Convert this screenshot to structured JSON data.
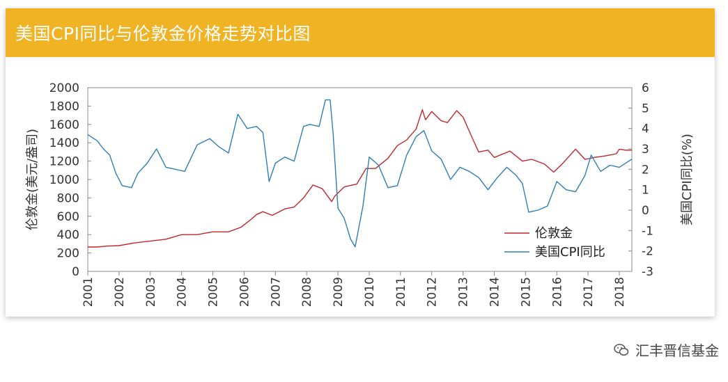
{
  "colors": {
    "header_bg": "#f0b323",
    "gold": "#c0262d",
    "cpi": "#2e7eb8",
    "axis": "#888888"
  },
  "watermark": {
    "text": "汇丰晋信基金",
    "icon": "wechat-icon"
  },
  "chart_data": {
    "type": "line",
    "title": "美国CPI同比与伦敦金价格走势对比图",
    "xlabel": "",
    "ylabel": "伦敦金(美元/盎司)",
    "y2label": "美国CPI同比(%)",
    "x_ticks": [
      "2001",
      "2002",
      "2003",
      "2004",
      "2005",
      "2006",
      "2007",
      "2008",
      "2009",
      "2010",
      "2011",
      "2012",
      "2013",
      "2014",
      "2015",
      "2016",
      "2017",
      "2018"
    ],
    "xlim": [
      2001,
      2018.4
    ],
    "ylim": [
      0,
      2000
    ],
    "y_ticks": [
      0,
      200,
      400,
      600,
      800,
      1000,
      1200,
      1400,
      1600,
      1800,
      2000
    ],
    "y2lim": [
      -3,
      6
    ],
    "y2_ticks": [
      -3,
      -2,
      -1,
      0,
      1,
      2,
      3,
      4,
      5,
      6
    ],
    "legend_position": "lower-right",
    "series": [
      {
        "name": "伦敦金",
        "axis": "left",
        "x": [
          2001.0,
          2001.3,
          2001.6,
          2002.0,
          2002.5,
          2003.0,
          2003.5,
          2004.0,
          2004.5,
          2005.0,
          2005.5,
          2005.9,
          2006.2,
          2006.4,
          2006.6,
          2006.9,
          2007.3,
          2007.6,
          2007.9,
          2008.2,
          2008.5,
          2008.8,
          2008.9,
          2009.2,
          2009.6,
          2009.9,
          2010.2,
          2010.6,
          2010.9,
          2011.2,
          2011.5,
          2011.7,
          2011.8,
          2012.0,
          2012.3,
          2012.5,
          2012.8,
          2013.0,
          2013.3,
          2013.5,
          2013.8,
          2014.0,
          2014.5,
          2014.9,
          2015.2,
          2015.6,
          2015.9,
          2016.2,
          2016.6,
          2016.9,
          2017.2,
          2017.6,
          2017.9,
          2018.0,
          2018.2,
          2018.4
        ],
        "values": [
          265,
          265,
          275,
          280,
          310,
          330,
          350,
          400,
          400,
          430,
          430,
          480,
          560,
          620,
          650,
          610,
          680,
          700,
          800,
          940,
          900,
          760,
          820,
          920,
          950,
          1120,
          1120,
          1230,
          1370,
          1430,
          1550,
          1760,
          1650,
          1740,
          1640,
          1620,
          1750,
          1680,
          1450,
          1300,
          1320,
          1240,
          1310,
          1200,
          1220,
          1170,
          1080,
          1180,
          1330,
          1220,
          1240,
          1260,
          1280,
          1330,
          1320,
          1320
        ]
      },
      {
        "name": "美国CPI同比",
        "axis": "right",
        "x": [
          2001.0,
          2001.3,
          2001.5,
          2001.7,
          2001.9,
          2002.1,
          2002.4,
          2002.6,
          2002.9,
          2003.2,
          2003.5,
          2003.8,
          2004.1,
          2004.5,
          2004.9,
          2005.2,
          2005.5,
          2005.8,
          2006.1,
          2006.4,
          2006.6,
          2006.8,
          2007.0,
          2007.3,
          2007.6,
          2007.9,
          2008.1,
          2008.4,
          2008.6,
          2008.75,
          2008.85,
          2009.0,
          2009.2,
          2009.4,
          2009.55,
          2009.8,
          2010.0,
          2010.3,
          2010.6,
          2010.9,
          2011.2,
          2011.5,
          2011.75,
          2012.0,
          2012.3,
          2012.6,
          2012.9,
          2013.2,
          2013.5,
          2013.8,
          2014.1,
          2014.4,
          2014.7,
          2014.9,
          2015.1,
          2015.4,
          2015.7,
          2016.0,
          2016.3,
          2016.6,
          2016.9,
          2017.1,
          2017.4,
          2017.7,
          2018.0,
          2018.4
        ],
        "values": [
          3.7,
          3.4,
          3.0,
          2.7,
          1.8,
          1.2,
          1.1,
          1.8,
          2.3,
          3.0,
          2.1,
          2.0,
          1.9,
          3.2,
          3.5,
          3.1,
          2.8,
          4.7,
          4.0,
          4.1,
          3.8,
          1.4,
          2.3,
          2.6,
          2.4,
          4.1,
          4.2,
          4.1,
          5.4,
          5.4,
          3.7,
          0.1,
          -0.4,
          -1.4,
          -1.8,
          0.2,
          2.6,
          2.2,
          1.1,
          1.2,
          2.7,
          3.6,
          3.9,
          2.9,
          2.5,
          1.5,
          2.1,
          1.9,
          1.6,
          1.0,
          1.6,
          2.1,
          1.7,
          1.3,
          -0.1,
          0.0,
          0.2,
          1.4,
          1.0,
          0.9,
          1.7,
          2.7,
          1.9,
          2.2,
          2.1,
          2.5
        ]
      }
    ]
  }
}
